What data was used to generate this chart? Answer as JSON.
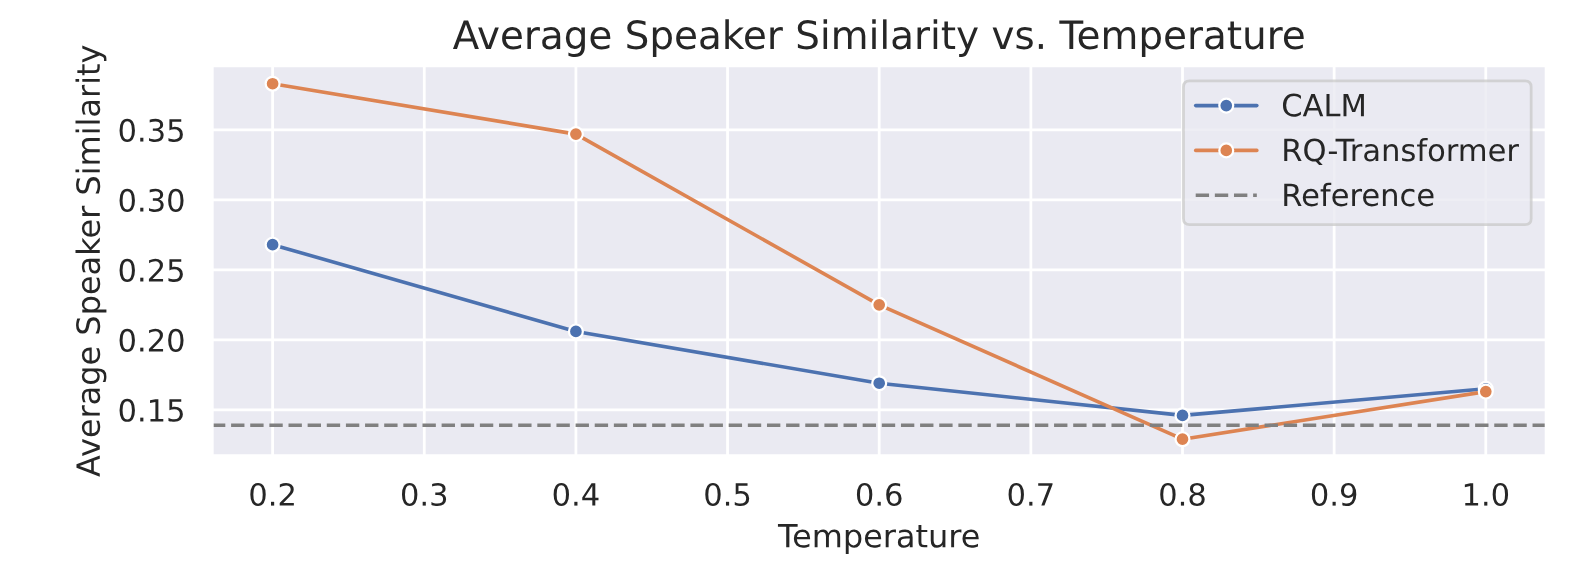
{
  "chart_data": {
    "type": "line",
    "title": "Average Speaker Similarity vs. Temperature",
    "xlabel": "Temperature",
    "ylabel": "Average Speaker Similarity",
    "x": [
      0.2,
      0.4,
      0.6,
      0.8,
      1.0
    ],
    "series": [
      {
        "name": "CALM",
        "color": "#4c72b0",
        "values": [
          0.268,
          0.206,
          0.169,
          0.146,
          0.165
        ]
      },
      {
        "name": "RQ-Transformer",
        "color": "#dd8452",
        "values": [
          0.383,
          0.347,
          0.225,
          0.129,
          0.163
        ]
      }
    ],
    "ref_lines": [
      {
        "axis": "y",
        "value": 0.139,
        "label": "Reference",
        "color": "#808080",
        "line_style": "dashed"
      }
    ],
    "xlim": [
      0.16,
      1.04
    ],
    "ylim": [
      0.117,
      0.396
    ],
    "xticks": [
      0.2,
      0.3,
      0.4,
      0.5,
      0.6,
      0.7,
      0.8,
      0.9,
      {
        "value": 1.0,
        "label": "1.0"
      }
    ],
    "yticks": [
      {
        "value": 0.15,
        "label": "0.15"
      },
      {
        "value": 0.2,
        "label": "0.20"
      },
      {
        "value": 0.25,
        "label": "0.25"
      },
      {
        "value": 0.3,
        "label": "0.30"
      },
      {
        "value": 0.35,
        "label": "0.35"
      }
    ],
    "grid": true,
    "legend": "top right",
    "marker": "circle",
    "line_style": "solid"
  }
}
